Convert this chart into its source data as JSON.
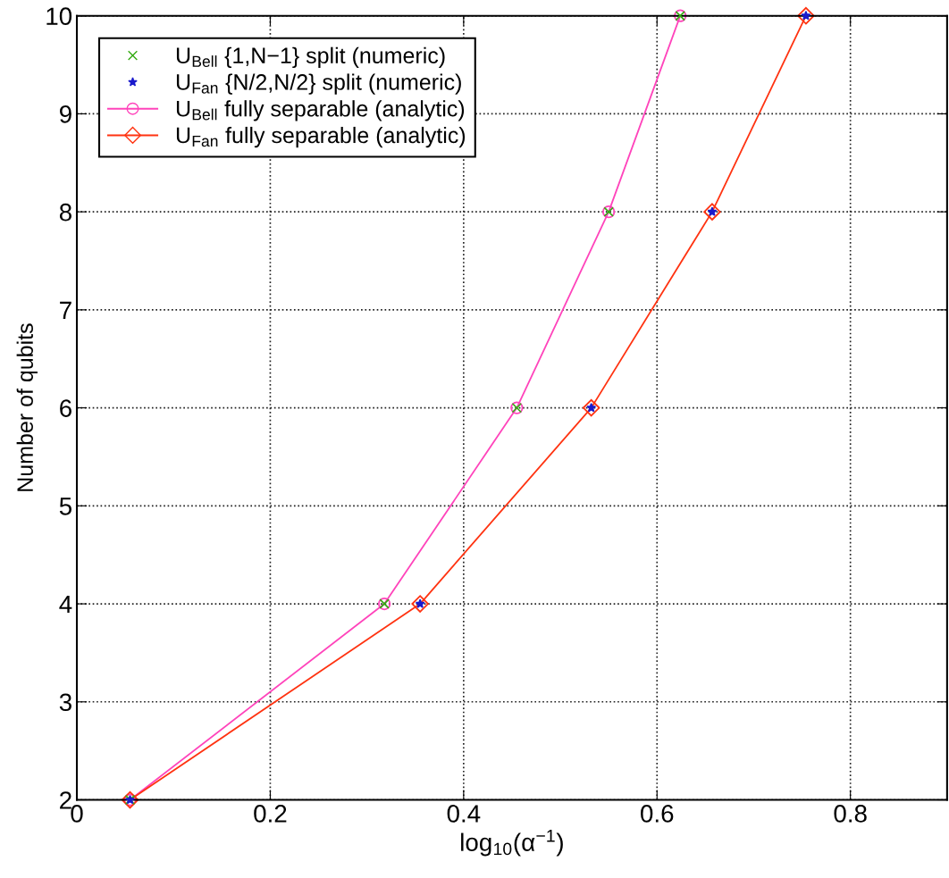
{
  "chart_data": {
    "type": "line",
    "xlabel": "log$_{10}$(α$^{−1}$)",
    "ylabel": "Number of qubits",
    "xlim": [
      0,
      0.9
    ],
    "xticks": [
      0,
      0.2,
      0.4,
      0.6,
      0.8
    ],
    "ylim": [
      2,
      10
    ],
    "yticks": [
      2,
      3,
      4,
      5,
      6,
      7,
      8,
      9,
      10
    ],
    "grid": true,
    "legend": "top left",
    "series": [
      {
        "name": "U$_{Bell}$ {1,N−1} split (numeric)",
        "type": "scatter",
        "marker": "cross",
        "color": "#33aa11",
        "x": [
          0.055,
          0.318,
          0.455,
          0.55,
          0.624
        ],
        "values": [
          2,
          4,
          6,
          8,
          10
        ]
      },
      {
        "name": "U$_{Fan}$ {N/2,N/2} split (numeric)",
        "type": "scatter",
        "marker": "star",
        "color": "#1a1acc",
        "x": [
          0.055,
          0.355,
          0.532,
          0.657,
          0.754
        ],
        "values": [
          2,
          4,
          6,
          8,
          10
        ]
      },
      {
        "name": "U$_{Bell}$ fully separable (analytic)",
        "marker": "circle",
        "line_style": "solid",
        "color": "#ff44bb",
        "x": [
          0.055,
          0.318,
          0.455,
          0.55,
          0.624
        ],
        "values": [
          2,
          4,
          6,
          8,
          10
        ]
      },
      {
        "name": "U$_{Fan}$ fully separable (analytic)",
        "marker": "diamond",
        "line_style": "solid",
        "color": "#ff3311",
        "x": [
          0.055,
          0.355,
          0.532,
          0.657,
          0.754
        ],
        "values": [
          2,
          4,
          6,
          8,
          10
        ]
      }
    ]
  }
}
